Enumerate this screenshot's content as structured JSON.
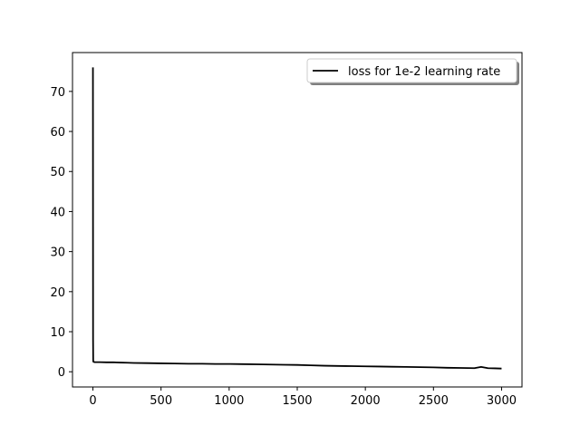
{
  "chart_data": {
    "type": "line",
    "title": "",
    "xlabel": "",
    "ylabel": "",
    "xlim": [
      -150,
      3150
    ],
    "ylim": [
      -3.8,
      79.7
    ],
    "xticks": [
      0,
      500,
      1000,
      1500,
      2000,
      2500,
      3000
    ],
    "yticks": [
      0,
      10,
      20,
      30,
      40,
      50,
      60,
      70
    ],
    "xtick_labels": [
      "0",
      "500",
      "1000",
      "1500",
      "2000",
      "2500",
      "3000"
    ],
    "ytick_labels": [
      "0",
      "10",
      "20",
      "30",
      "40",
      "50",
      "60",
      "70"
    ],
    "grid": false,
    "legend": {
      "position": "upper-right",
      "shadow": true
    },
    "series": [
      {
        "name": "loss for 1e-2 learning rate",
        "color": "#000000",
        "x": [
          0,
          1,
          2,
          3,
          5,
          8,
          12,
          20,
          50,
          100,
          150,
          200,
          250,
          300,
          400,
          500,
          600,
          700,
          800,
          900,
          1000,
          1100,
          1200,
          1300,
          1400,
          1500,
          1600,
          1700,
          1800,
          1900,
          2000,
          2100,
          2200,
          2300,
          2400,
          2500,
          2600,
          2700,
          2800,
          2850,
          2900,
          2950,
          3000
        ],
        "y": [
          76.0,
          8.0,
          2.8,
          2.5,
          2.5,
          2.45,
          2.4,
          2.4,
          2.4,
          2.35,
          2.35,
          2.3,
          2.25,
          2.2,
          2.15,
          2.1,
          2.05,
          2.0,
          2.0,
          1.95,
          1.95,
          1.9,
          1.85,
          1.8,
          1.75,
          1.7,
          1.6,
          1.5,
          1.45,
          1.4,
          1.35,
          1.3,
          1.25,
          1.2,
          1.15,
          1.1,
          1.0,
          0.95,
          0.9,
          1.2,
          0.9,
          0.85,
          0.8
        ]
      }
    ]
  }
}
